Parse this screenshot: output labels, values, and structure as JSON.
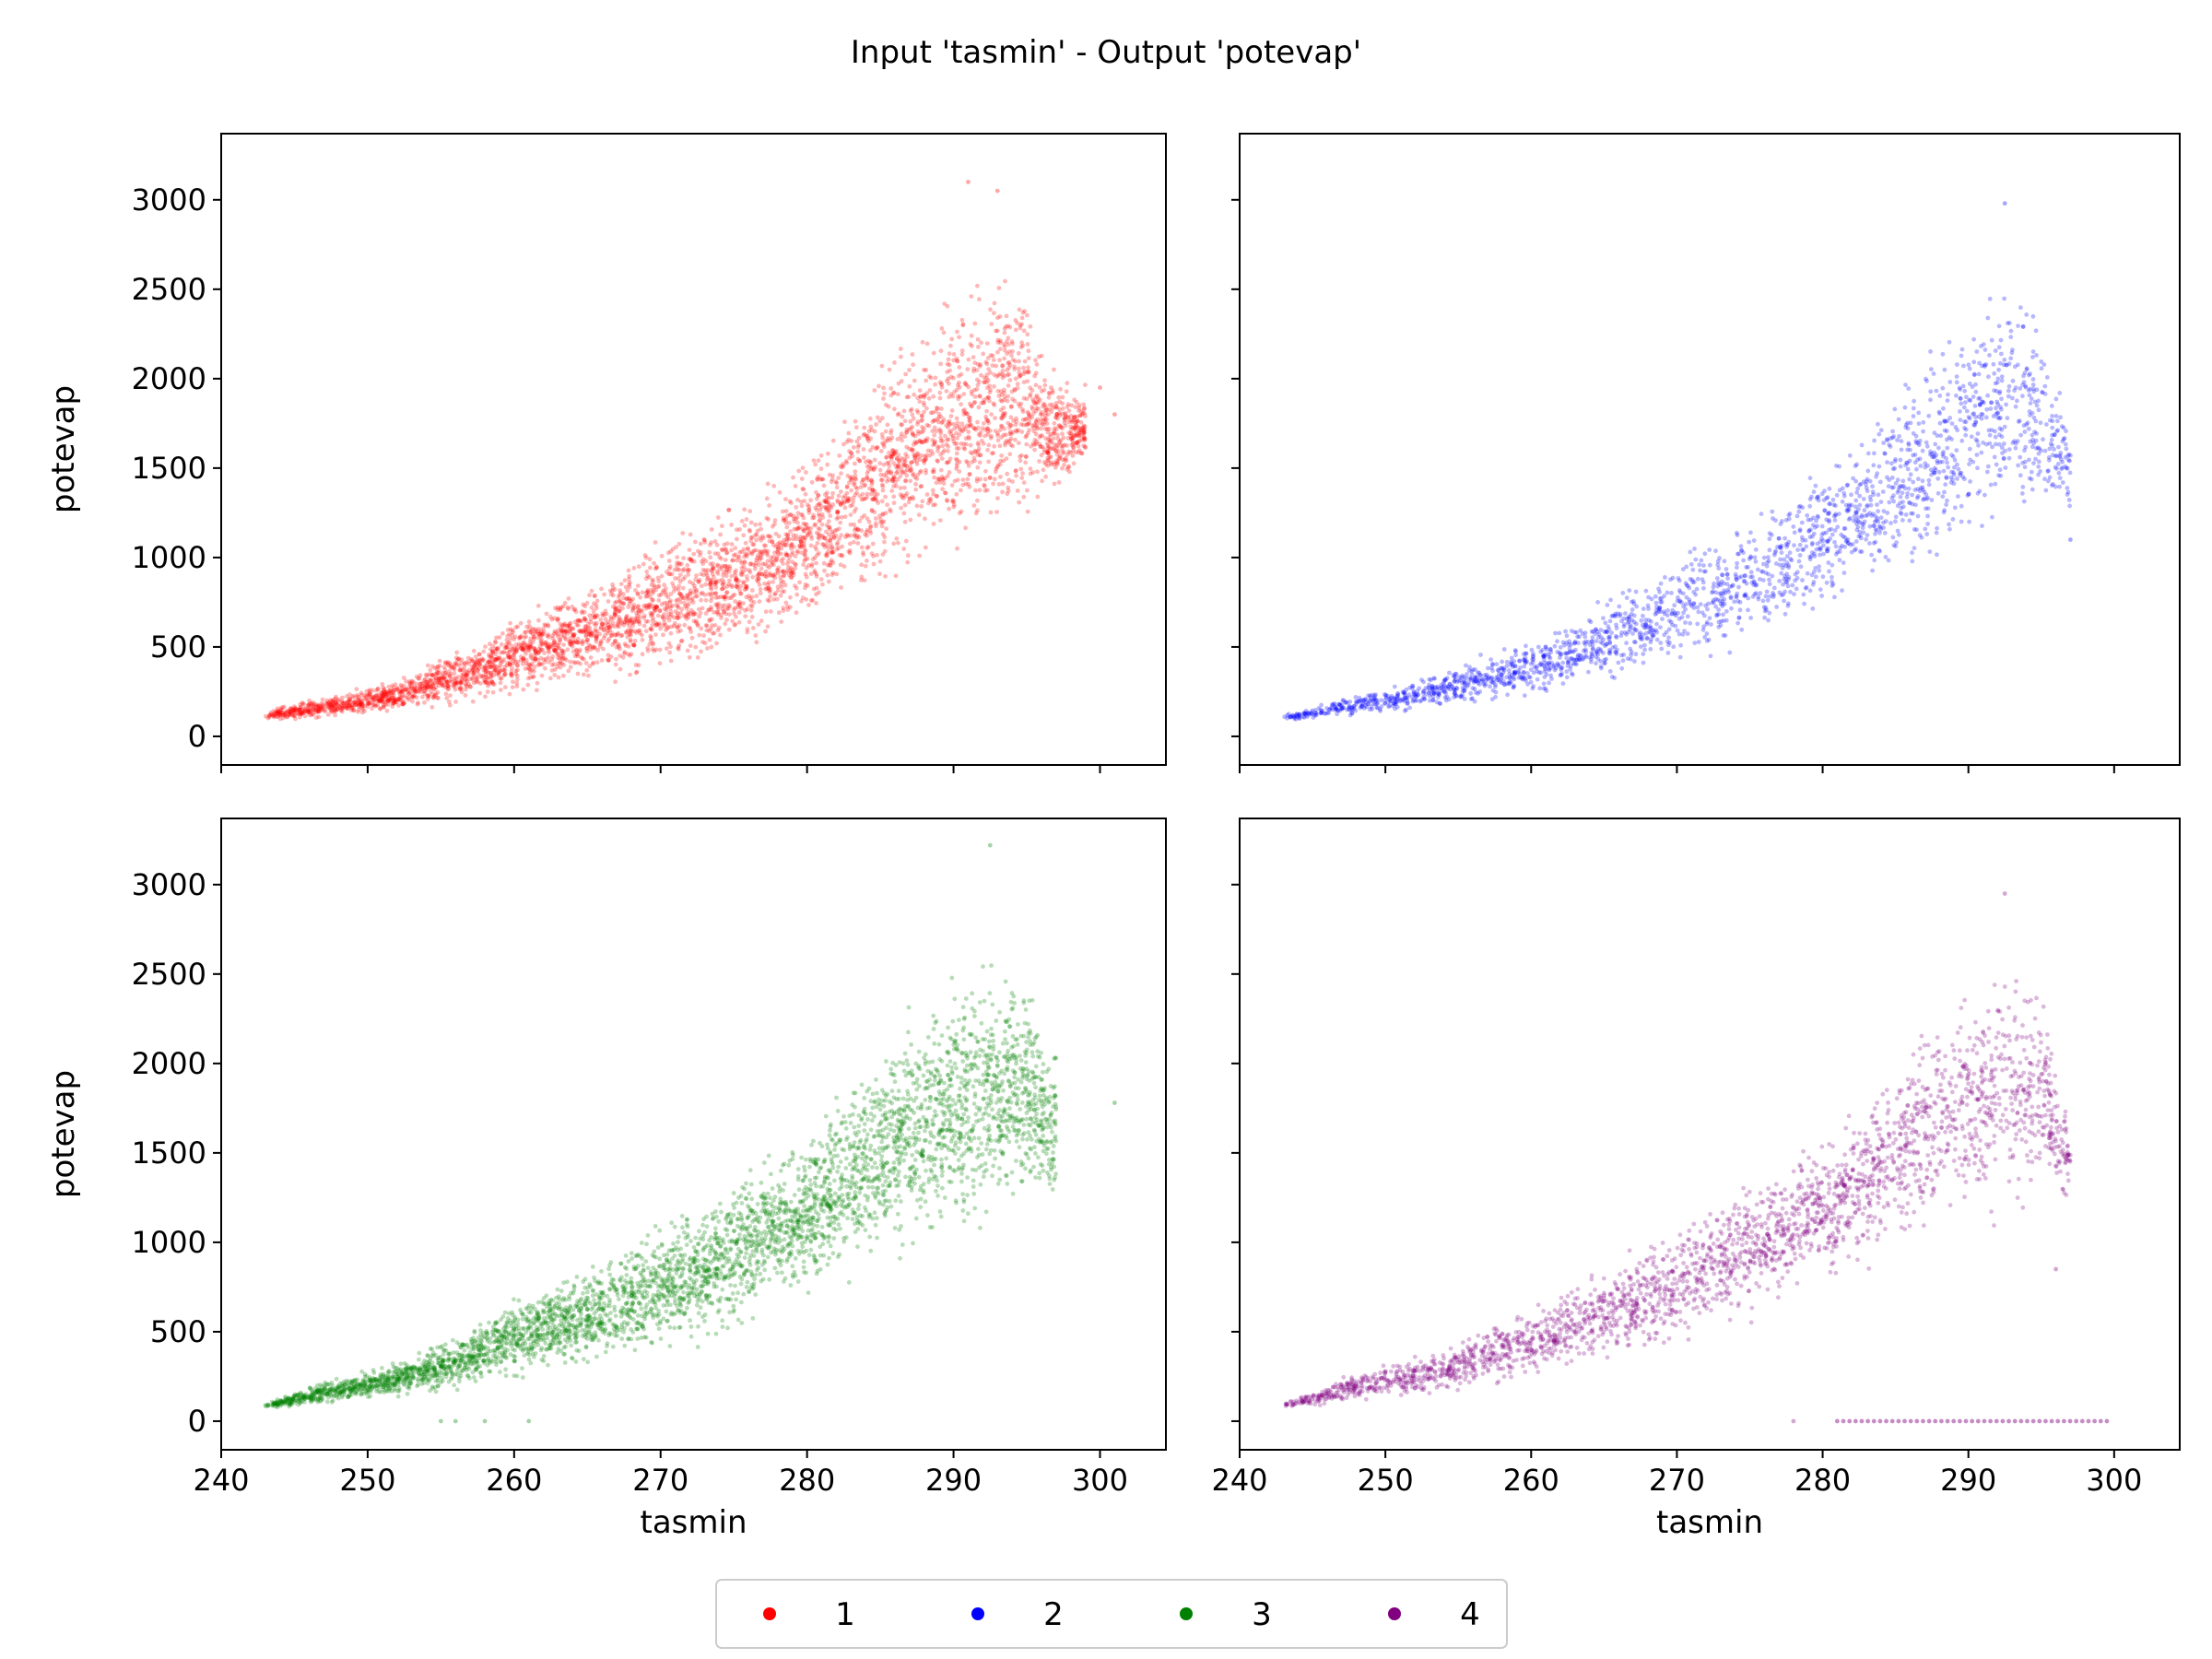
{
  "figure": {
    "title": "Input 'tasmin' - Output 'potevap'"
  },
  "chart_data": [
    {
      "type": "scatter",
      "panel": "top-left",
      "color": "#ff0000",
      "series_label": "1",
      "xlabel": "",
      "ylabel": "potevap",
      "xlim": [
        240,
        304.5
      ],
      "ylim": [
        -160,
        3370
      ],
      "xticks": [
        240,
        250,
        260,
        270,
        280,
        290,
        300
      ],
      "yticks": [
        0,
        500,
        1000,
        1500,
        2000,
        2500,
        3000
      ],
      "show_xtick_labels": false,
      "show_ytick_labels": true,
      "band": [
        {
          "x": 243,
          "lo": 80,
          "hi": 150
        },
        {
          "x": 247,
          "lo": 95,
          "hi": 230
        },
        {
          "x": 252,
          "lo": 120,
          "hi": 330
        },
        {
          "x": 256,
          "lo": 160,
          "hi": 500
        },
        {
          "x": 260,
          "lo": 200,
          "hi": 700
        },
        {
          "x": 265,
          "lo": 250,
          "hi": 880
        },
        {
          "x": 270,
          "lo": 320,
          "hi": 1150
        },
        {
          "x": 275,
          "lo": 420,
          "hi": 1350
        },
        {
          "x": 280,
          "lo": 600,
          "hi": 1600
        },
        {
          "x": 285,
          "lo": 750,
          "hi": 2200
        },
        {
          "x": 290,
          "lo": 900,
          "hi": 2550
        },
        {
          "x": 294,
          "lo": 1100,
          "hi": 2700
        },
        {
          "x": 297,
          "lo": 1250,
          "hi": 2100
        },
        {
          "x": 299,
          "lo": 1500,
          "hi": 2000
        }
      ],
      "n_points": 4200,
      "outliers": [
        {
          "x": 291,
          "y": 3100
        },
        {
          "x": 293,
          "y": 3050
        },
        {
          "x": 301,
          "y": 1800
        },
        {
          "x": 300,
          "y": 1950
        }
      ]
    },
    {
      "type": "scatter",
      "panel": "top-right",
      "color": "#0000ff",
      "series_label": "2",
      "xlabel": "",
      "ylabel": "",
      "xlim": [
        240,
        304.5
      ],
      "ylim": [
        -160,
        3370
      ],
      "xticks": [
        240,
        250,
        260,
        270,
        280,
        290,
        300
      ],
      "yticks": [
        0,
        500,
        1000,
        1500,
        2000,
        2500,
        3000
      ],
      "show_xtick_labels": false,
      "show_ytick_labels": false,
      "band": [
        {
          "x": 243,
          "lo": 80,
          "hi": 130
        },
        {
          "x": 247,
          "lo": 100,
          "hi": 220
        },
        {
          "x": 252,
          "lo": 130,
          "hi": 330
        },
        {
          "x": 257,
          "lo": 170,
          "hi": 480
        },
        {
          "x": 262,
          "lo": 220,
          "hi": 650
        },
        {
          "x": 267,
          "lo": 300,
          "hi": 900
        },
        {
          "x": 272,
          "lo": 380,
          "hi": 1150
        },
        {
          "x": 277,
          "lo": 500,
          "hi": 1400
        },
        {
          "x": 282,
          "lo": 700,
          "hi": 1750
        },
        {
          "x": 287,
          "lo": 900,
          "hi": 2150
        },
        {
          "x": 291,
          "lo": 1000,
          "hi": 2550
        },
        {
          "x": 294,
          "lo": 1100,
          "hi": 2650
        },
        {
          "x": 297,
          "lo": 1200,
          "hi": 1800
        }
      ],
      "n_points": 2200,
      "outliers": [
        {
          "x": 292.5,
          "y": 2980
        },
        {
          "x": 297,
          "y": 1100
        }
      ]
    },
    {
      "type": "scatter",
      "panel": "bottom-left",
      "color": "#008000",
      "series_label": "3",
      "xlabel": "tasmin",
      "ylabel": "potevap",
      "xlim": [
        240,
        304.5
      ],
      "ylim": [
        -160,
        3370
      ],
      "xticks": [
        240,
        250,
        260,
        270,
        280,
        290,
        300
      ],
      "yticks": [
        0,
        500,
        1000,
        1500,
        2000,
        2500,
        3000
      ],
      "show_xtick_labels": true,
      "show_ytick_labels": true,
      "band": [
        {
          "x": 243,
          "lo": 70,
          "hi": 100
        },
        {
          "x": 247,
          "lo": 90,
          "hi": 230
        },
        {
          "x": 252,
          "lo": 120,
          "hi": 350
        },
        {
          "x": 256,
          "lo": 160,
          "hi": 500
        },
        {
          "x": 260,
          "lo": 200,
          "hi": 720
        },
        {
          "x": 265,
          "lo": 260,
          "hi": 900
        },
        {
          "x": 270,
          "lo": 330,
          "hi": 1150
        },
        {
          "x": 275,
          "lo": 450,
          "hi": 1450
        },
        {
          "x": 280,
          "lo": 650,
          "hi": 1700
        },
        {
          "x": 285,
          "lo": 800,
          "hi": 2200
        },
        {
          "x": 290,
          "lo": 950,
          "hi": 2550
        },
        {
          "x": 294,
          "lo": 1000,
          "hi": 2750
        },
        {
          "x": 297,
          "lo": 1200,
          "hi": 2100
        }
      ],
      "n_points": 4200,
      "outliers": [
        {
          "x": 292.5,
          "y": 3220
        },
        {
          "x": 301,
          "y": 1780
        },
        {
          "x": 255,
          "y": 0
        },
        {
          "x": 256,
          "y": 0
        },
        {
          "x": 258,
          "y": 0
        },
        {
          "x": 261,
          "y": 0
        }
      ]
    },
    {
      "type": "scatter",
      "panel": "bottom-right",
      "color": "#800080",
      "series_label": "4",
      "xlabel": "tasmin",
      "ylabel": "",
      "xlim": [
        240,
        304.5
      ],
      "ylim": [
        -160,
        3370
      ],
      "xticks": [
        240,
        250,
        260,
        270,
        280,
        290,
        300
      ],
      "yticks": [
        0,
        500,
        1000,
        1500,
        2000,
        2500,
        3000
      ],
      "show_xtick_labels": true,
      "show_ytick_labels": false,
      "band": [
        {
          "x": 243,
          "lo": 75,
          "hi": 100
        },
        {
          "x": 248,
          "lo": 90,
          "hi": 300
        },
        {
          "x": 253,
          "lo": 130,
          "hi": 400
        },
        {
          "x": 258,
          "lo": 180,
          "hi": 600
        },
        {
          "x": 263,
          "lo": 250,
          "hi": 800
        },
        {
          "x": 268,
          "lo": 330,
          "hi": 1050
        },
        {
          "x": 273,
          "lo": 450,
          "hi": 1300
        },
        {
          "x": 278,
          "lo": 600,
          "hi": 1550
        },
        {
          "x": 283,
          "lo": 800,
          "hi": 1850
        },
        {
          "x": 288,
          "lo": 950,
          "hi": 2400
        },
        {
          "x": 292,
          "lo": 1050,
          "hi": 2600
        },
        {
          "x": 295,
          "lo": 1150,
          "hi": 2550
        },
        {
          "x": 297,
          "lo": 1200,
          "hi": 1700
        }
      ],
      "n_points": 2600,
      "zero_line": {
        "x_from": 281,
        "x_to": 299.5,
        "y": 0,
        "n": 45
      },
      "outliers": [
        {
          "x": 278,
          "y": 0
        },
        {
          "x": 292.5,
          "y": 2950
        },
        {
          "x": 296,
          "y": 850
        }
      ]
    }
  ],
  "legend": {
    "placement": "bottom-center",
    "entries": [
      {
        "label": "1",
        "color": "#ff0000"
      },
      {
        "label": "2",
        "color": "#0000ff"
      },
      {
        "label": "3",
        "color": "#008000"
      },
      {
        "label": "4",
        "color": "#800080"
      }
    ]
  }
}
